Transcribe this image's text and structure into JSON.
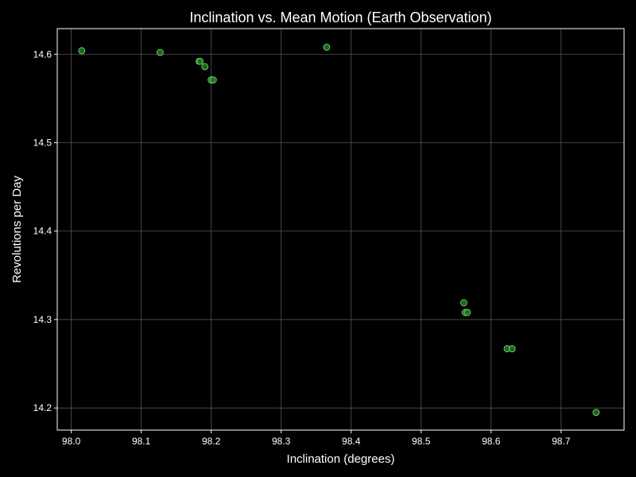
{
  "chart_data": {
    "type": "scatter",
    "title": "Inclination vs. Mean Motion (Earth Observation)",
    "xlabel": "Inclination (degrees)",
    "ylabel": "Revolutions per Day",
    "xlim": [
      97.98,
      98.79
    ],
    "ylim": [
      14.175,
      14.629
    ],
    "x_ticks": [
      98.0,
      98.1,
      98.2,
      98.3,
      98.4,
      98.5,
      98.6,
      98.7
    ],
    "x_tick_labels": [
      "98.0",
      "98.1",
      "98.2",
      "98.3",
      "98.4",
      "98.5",
      "98.6",
      "98.7"
    ],
    "y_ticks": [
      14.2,
      14.3,
      14.4,
      14.5,
      14.6
    ],
    "y_tick_labels": [
      "14.2",
      "14.3",
      "14.4",
      "14.5",
      "14.6"
    ],
    "grid": true,
    "background_color": "#000000",
    "axes_color": "#ffffff",
    "grid_color": "#555555",
    "marker_fill": "#1f7a1f",
    "marker_edge": "#7fdc7f",
    "points": [
      {
        "x": 98.015,
        "y": 14.604
      },
      {
        "x": 98.127,
        "y": 14.602
      },
      {
        "x": 98.183,
        "y": 14.592
      },
      {
        "x": 98.184,
        "y": 14.592
      },
      {
        "x": 98.191,
        "y": 14.586
      },
      {
        "x": 98.2,
        "y": 14.571
      },
      {
        "x": 98.203,
        "y": 14.571
      },
      {
        "x": 98.365,
        "y": 14.608
      },
      {
        "x": 98.561,
        "y": 14.319
      },
      {
        "x": 98.563,
        "y": 14.308
      },
      {
        "x": 98.566,
        "y": 14.308
      },
      {
        "x": 98.623,
        "y": 14.267
      },
      {
        "x": 98.63,
        "y": 14.267
      },
      {
        "x": 98.75,
        "y": 14.195
      }
    ]
  }
}
